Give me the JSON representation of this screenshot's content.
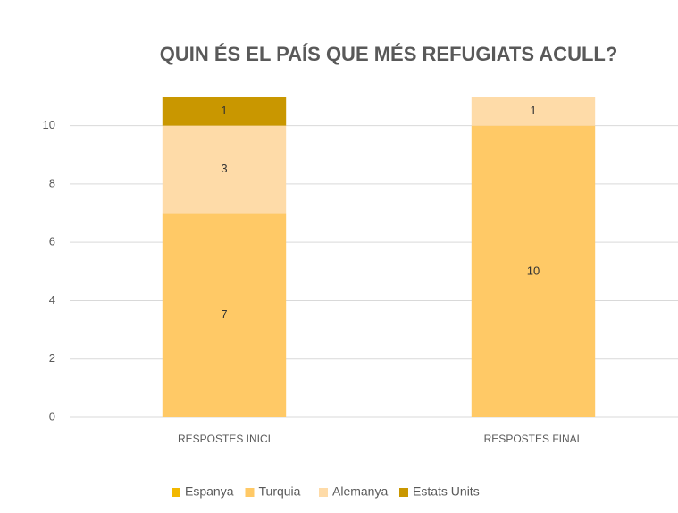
{
  "chart_data": {
    "type": "stacked_bar",
    "title": "QUIN ÉS EL PAÍS QUE MÉS REFUGIATS ACULL?",
    "categories": [
      "RESPOSTES INICI",
      "RESPOSTES FINAL"
    ],
    "series": [
      {
        "name": "Espanya",
        "color": "#f2b800",
        "values": [
          0,
          0
        ]
      },
      {
        "name": "Turquia",
        "color": "#ffc966",
        "values": [
          7,
          10
        ]
      },
      {
        "name": "Alemanya",
        "color": "#fedba8",
        "values": [
          3,
          1
        ]
      },
      {
        "name": "Estats Units",
        "color": "#c99700",
        "values": [
          1,
          0
        ]
      }
    ],
    "ylim": [
      0,
      11
    ],
    "yticks": [
      0,
      2,
      4,
      6,
      8,
      10
    ],
    "grid": true,
    "legend": "bottom"
  }
}
